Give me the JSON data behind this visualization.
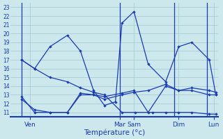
{
  "xlabel": "Température (°c)",
  "background_color": "#cce8ec",
  "grid_color": "#a0c8d0",
  "line_color": "#1a3ab8",
  "yticks": [
    11,
    12,
    13,
    14,
    15,
    16,
    17,
    18,
    19,
    20,
    21,
    22,
    23
  ],
  "ylim": [
    10.5,
    23.5
  ],
  "xlim": [
    0,
    9.5
  ],
  "vlines": [
    0.5,
    5.0,
    7.5,
    9.0
  ],
  "x_tick_positions": [
    0.9,
    5.0,
    5.65,
    7.7,
    9.3
  ],
  "x_tick_labels": [
    "Ven",
    "Mar",
    "Sam",
    "Dim",
    "Lun"
  ],
  "series": [
    {
      "x": [
        0.5,
        1.1,
        1.8,
        2.6,
        3.2,
        3.8,
        4.3,
        5.1,
        5.7,
        6.5,
        7.1,
        7.7,
        8.3,
        9.1,
        9.4
      ],
      "y": [
        17.0,
        16.0,
        15.0,
        14.5,
        13.8,
        13.3,
        13.0,
        11.0,
        11.0,
        11.0,
        11.0,
        11.0,
        11.0,
        10.8,
        10.8
      ]
    },
    {
      "x": [
        0.5,
        1.1,
        1.8,
        2.6,
        3.2,
        3.8,
        4.3,
        4.8,
        5.1,
        5.65,
        6.3,
        7.1,
        7.7,
        8.3,
        9.1,
        9.4
      ],
      "y": [
        17.0,
        16.0,
        18.5,
        19.8,
        18.0,
        13.5,
        11.8,
        12.2,
        21.2,
        22.5,
        16.5,
        14.5,
        18.5,
        19.0,
        17.0,
        13.0
      ]
    },
    {
      "x": [
        0.5,
        1.1,
        1.8,
        2.6,
        3.2,
        3.8,
        4.3,
        5.1,
        5.65,
        6.3,
        7.1,
        7.7,
        8.3,
        9.1,
        9.4
      ],
      "y": [
        12.5,
        11.3,
        11.0,
        11.0,
        13.0,
        13.0,
        12.5,
        13.0,
        13.3,
        13.5,
        14.2,
        13.5,
        13.5,
        13.0,
        13.0
      ]
    },
    {
      "x": [
        0.5,
        1.1,
        1.8,
        2.6,
        3.2,
        3.8,
        4.3,
        5.1,
        5.65,
        6.3,
        7.1,
        7.7,
        8.3,
        9.1,
        9.4
      ],
      "y": [
        12.8,
        11.0,
        11.0,
        11.0,
        13.2,
        13.0,
        12.8,
        13.2,
        13.5,
        11.0,
        14.0,
        13.5,
        13.8,
        13.5,
        13.3
      ]
    }
  ]
}
